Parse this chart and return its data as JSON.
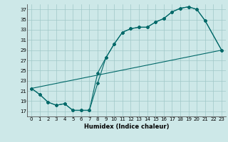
{
  "xlabel": "Humidex (Indice chaleur)",
  "bg_color": "#cde8e8",
  "grid_color": "#a0c8c8",
  "line_color": "#006868",
  "xlim": [
    -0.5,
    23.5
  ],
  "ylim": [
    16.0,
    38.0
  ],
  "xticks": [
    0,
    1,
    2,
    3,
    4,
    5,
    6,
    7,
    8,
    9,
    10,
    11,
    12,
    13,
    14,
    15,
    16,
    17,
    18,
    19,
    20,
    21,
    22,
    23
  ],
  "yticks": [
    17,
    19,
    21,
    23,
    25,
    27,
    29,
    31,
    33,
    35,
    37
  ],
  "line1_x": [
    0,
    1,
    2,
    3,
    4,
    5,
    6,
    7,
    8,
    9,
    10,
    11,
    12,
    13,
    14,
    15,
    16,
    17,
    18,
    19,
    20,
    21,
    23
  ],
  "line1_y": [
    21.5,
    20.3,
    18.8,
    18.2,
    18.5,
    17.2,
    17.2,
    17.2,
    22.5,
    27.5,
    30.2,
    32.5,
    33.2,
    33.5,
    33.5,
    34.5,
    35.2,
    36.5,
    37.2,
    37.5,
    37.0,
    34.8,
    29.0
  ],
  "line2_x": [
    0,
    1,
    2,
    3,
    4,
    5,
    6,
    7,
    8,
    9,
    10,
    11,
    12,
    13,
    14,
    15,
    16,
    17,
    18,
    19,
    20,
    21,
    23
  ],
  "line2_y": [
    21.5,
    20.3,
    18.8,
    18.2,
    18.5,
    17.2,
    17.2,
    17.2,
    24.5,
    27.5,
    30.2,
    32.5,
    33.2,
    33.5,
    33.5,
    34.5,
    35.2,
    36.5,
    37.2,
    37.5,
    37.0,
    34.8,
    29.0
  ],
  "line3_x": [
    0,
    23
  ],
  "line3_y": [
    21.5,
    29.0
  ],
  "tick_fontsize": 5.0,
  "xlabel_fontsize": 6.0
}
